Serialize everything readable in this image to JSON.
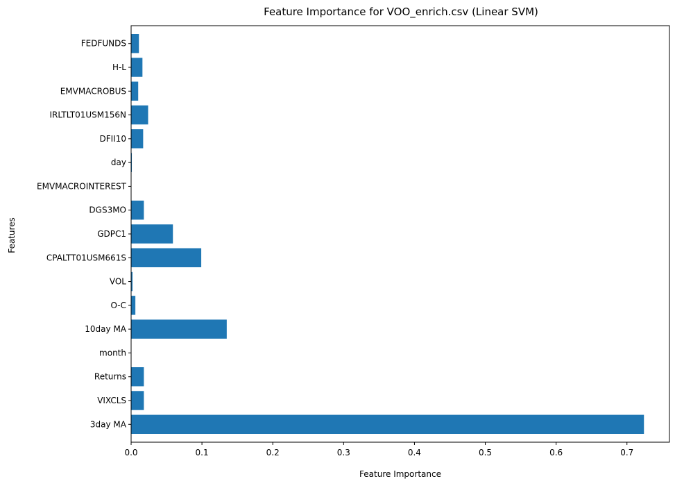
{
  "chart_data": {
    "type": "bar",
    "orientation": "horizontal",
    "title": "Feature Importance for VOO_enrich.csv (Linear SVM)",
    "xlabel": "Feature Importance",
    "ylabel": "Features",
    "categories": [
      "3day MA",
      "VIXCLS",
      "Returns",
      "month",
      "10day MA",
      "O-C",
      "VOL",
      "CPALTT01USM661S",
      "GDPC1",
      "DGS3MO",
      "EMVMACROINTEREST",
      "day",
      "DFII10",
      "IRLTLT01USM156N",
      "EMVMACROBUS",
      "H-L",
      "FEDFUNDS"
    ],
    "values": [
      0.724,
      0.018,
      0.018,
      0.0,
      0.135,
      0.006,
      0.002,
      0.099,
      0.059,
      0.018,
      0.0,
      0.001,
      0.017,
      0.024,
      0.01,
      0.016,
      0.011
    ],
    "xlim": [
      0,
      0.76
    ],
    "xticks": [
      0.0,
      0.1,
      0.2,
      0.3,
      0.4,
      0.5,
      0.6,
      0.7
    ],
    "xtick_labels": [
      "0.0",
      "0.1",
      "0.2",
      "0.3",
      "0.4",
      "0.5",
      "0.6",
      "0.7"
    ],
    "bar_color": "#1f77b4",
    "grid": false,
    "legend": "none"
  }
}
